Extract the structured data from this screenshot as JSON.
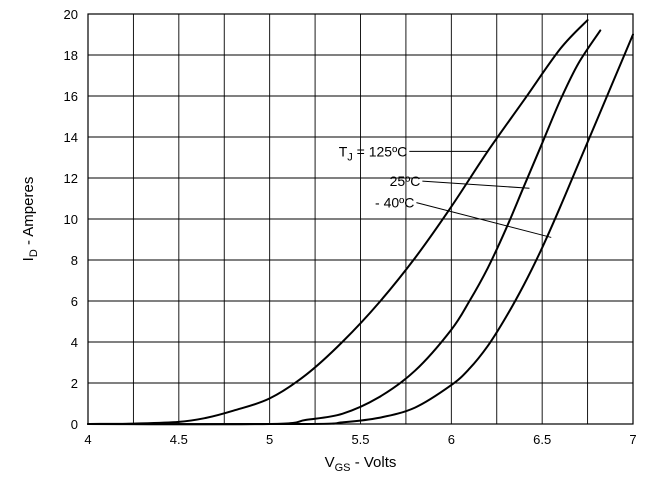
{
  "chart_data": {
    "type": "line",
    "xlabel_main": "V",
    "xlabel_sub": "GS",
    "xlabel_rest": " - Volts",
    "ylabel_main": "I",
    "ylabel_sub": "D",
    "ylabel_rest": " - Amperes",
    "xlim": [
      4,
      7
    ],
    "ylim": [
      0,
      20
    ],
    "x_ticks": [
      4,
      4.5,
      5,
      5.5,
      6,
      6.5,
      7
    ],
    "x_tick_labels": [
      "4",
      "4.5",
      "5",
      "5.5",
      "6",
      "6.5",
      "7"
    ],
    "y_ticks": [
      0,
      2,
      4,
      6,
      8,
      10,
      12,
      14,
      16,
      18,
      20
    ],
    "y_tick_labels": [
      "0",
      "2",
      "4",
      "6",
      "8",
      "10",
      "12",
      "14",
      "16",
      "18",
      "20"
    ],
    "x_grid_step": 0.25,
    "grid": true,
    "series": [
      {
        "name": "TJ = 125ºC",
        "x": [
          4.0,
          4.25,
          4.5,
          4.65,
          4.8,
          5.0,
          5.2,
          5.4,
          5.6,
          5.8,
          6.0,
          6.2,
          6.4,
          6.6,
          6.75
        ],
        "y": [
          0.0,
          0.02,
          0.1,
          0.3,
          0.65,
          1.25,
          2.4,
          4.0,
          5.9,
          8.1,
          10.6,
          13.3,
          15.8,
          18.3,
          19.7
        ]
      },
      {
        "name": "25ºC",
        "x": [
          4.0,
          5.0,
          5.2,
          5.4,
          5.6,
          5.8,
          6.0,
          6.1,
          6.2,
          6.3,
          6.4,
          6.5,
          6.6,
          6.7,
          6.82
        ],
        "y": [
          0.0,
          0.0,
          0.2,
          0.5,
          1.3,
          2.6,
          4.6,
          6.0,
          7.6,
          9.5,
          11.6,
          13.7,
          15.8,
          17.6,
          19.2
        ]
      },
      {
        "name": "- 40ºC",
        "x": [
          4.0,
          5.2,
          5.4,
          5.6,
          5.8,
          6.0,
          6.1,
          6.2,
          6.3,
          6.4,
          6.5,
          6.6,
          6.7,
          6.8,
          6.9,
          7.0
        ],
        "y": [
          0.0,
          0.0,
          0.08,
          0.3,
          0.8,
          1.9,
          2.7,
          3.8,
          5.2,
          6.8,
          8.6,
          10.6,
          12.7,
          14.8,
          16.9,
          19.0
        ]
      }
    ],
    "annotations": [
      {
        "label_main": "T",
        "label_sub": "J",
        "label_rest": " = 125ºC",
        "series_index": 0,
        "text_x": 5.38,
        "text_y": 13.3,
        "tip_x": 6.2,
        "tip_y": 13.3
      },
      {
        "label_main": "25ºC",
        "label_sub": "",
        "label_rest": "",
        "series_index": 1,
        "text_x": 5.66,
        "text_y": 11.85,
        "tip_x": 6.43,
        "tip_y": 11.5
      },
      {
        "label_main": "- 40ºC",
        "label_sub": "",
        "label_rest": "",
        "series_index": 2,
        "text_x": 5.58,
        "text_y": 10.8,
        "tip_x": 6.55,
        "tip_y": 9.1
      }
    ]
  }
}
